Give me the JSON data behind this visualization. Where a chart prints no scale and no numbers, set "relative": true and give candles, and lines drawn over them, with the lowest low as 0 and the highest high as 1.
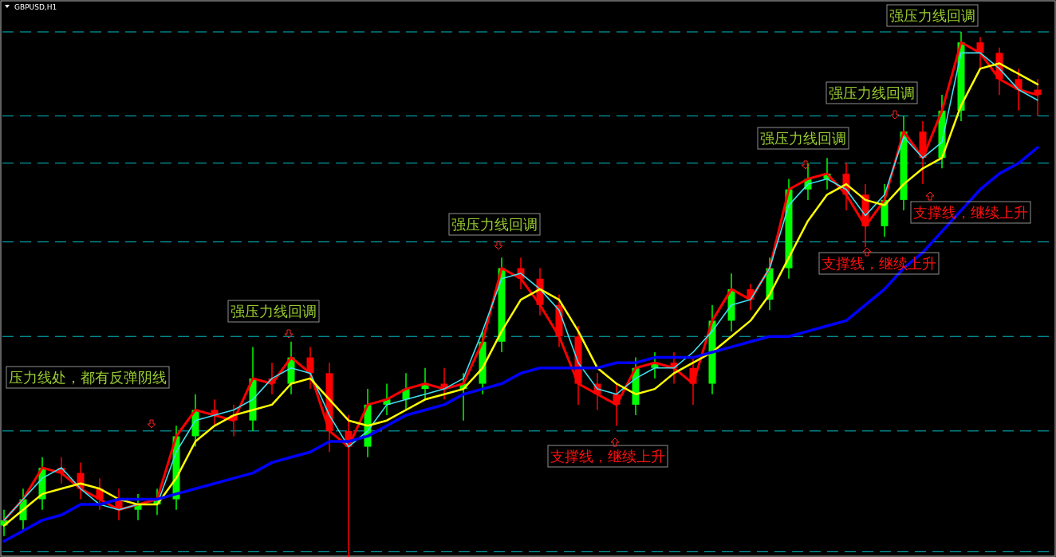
{
  "chart_data": {
    "type": "candlestick",
    "title": "GBPUSD,H1",
    "relative": true,
    "categories": [
      null,
      null,
      null,
      null,
      null,
      null,
      null,
      null,
      null,
      null,
      null,
      null,
      null,
      null,
      null,
      null,
      null,
      null,
      null,
      null,
      null,
      null,
      null,
      null,
      null,
      null,
      null,
      null,
      null,
      null,
      null,
      null,
      null,
      null,
      null,
      null,
      null,
      null,
      null,
      null,
      null,
      null,
      null,
      null,
      null,
      null,
      null,
      null,
      null,
      null,
      null,
      null,
      null,
      null,
      null
    ],
    "ohlc": [
      [
        0.06,
        0.09,
        0.04,
        0.07
      ],
      [
        0.07,
        0.13,
        0.05,
        0.11
      ],
      [
        0.11,
        0.19,
        0.09,
        0.17
      ],
      [
        0.17,
        0.19,
        0.14,
        0.16
      ],
      [
        0.16,
        0.18,
        0.11,
        0.13
      ],
      [
        0.13,
        0.15,
        0.09,
        0.11
      ],
      [
        0.11,
        0.13,
        0.07,
        0.09
      ],
      [
        0.09,
        0.12,
        0.07,
        0.1
      ],
      [
        0.1,
        0.13,
        0.08,
        0.11
      ],
      [
        0.11,
        0.25,
        0.09,
        0.23
      ],
      [
        0.23,
        0.31,
        0.21,
        0.28
      ],
      [
        0.28,
        0.3,
        0.25,
        0.27
      ],
      [
        0.27,
        0.29,
        0.23,
        0.26
      ],
      [
        0.26,
        0.4,
        0.24,
        0.34
      ],
      [
        0.34,
        0.37,
        0.31,
        0.33
      ],
      [
        0.33,
        0.41,
        0.31,
        0.38
      ],
      [
        0.38,
        0.4,
        0.32,
        0.35
      ],
      [
        0.35,
        0.37,
        0.2,
        0.24
      ],
      [
        0.24,
        0.27,
        0.0,
        0.21
      ],
      [
        0.21,
        0.32,
        0.19,
        0.29
      ],
      [
        0.29,
        0.33,
        0.27,
        0.3
      ],
      [
        0.3,
        0.35,
        0.28,
        0.32
      ],
      [
        0.32,
        0.36,
        0.3,
        0.33
      ],
      [
        0.33,
        0.36,
        0.3,
        0.32
      ],
      [
        0.32,
        0.35,
        0.26,
        0.33
      ],
      [
        0.33,
        0.43,
        0.31,
        0.41
      ],
      [
        0.41,
        0.57,
        0.39,
        0.55
      ],
      [
        0.55,
        0.57,
        0.51,
        0.53
      ],
      [
        0.53,
        0.55,
        0.46,
        0.48
      ],
      [
        0.48,
        0.5,
        0.4,
        0.42
      ],
      [
        0.42,
        0.44,
        0.29,
        0.33
      ],
      [
        0.33,
        0.35,
        0.28,
        0.31
      ],
      [
        0.31,
        0.33,
        0.25,
        0.29
      ],
      [
        0.29,
        0.38,
        0.27,
        0.36
      ],
      [
        0.36,
        0.39,
        0.34,
        0.37
      ],
      [
        0.37,
        0.39,
        0.33,
        0.36
      ],
      [
        0.36,
        0.38,
        0.29,
        0.33
      ],
      [
        0.33,
        0.48,
        0.31,
        0.45
      ],
      [
        0.45,
        0.54,
        0.43,
        0.51
      ],
      [
        0.51,
        0.52,
        0.47,
        0.49
      ],
      [
        0.49,
        0.57,
        0.47,
        0.55
      ],
      [
        0.55,
        0.72,
        0.53,
        0.7
      ],
      [
        0.7,
        0.75,
        0.68,
        0.72
      ],
      [
        0.72,
        0.76,
        0.7,
        0.73
      ],
      [
        0.73,
        0.75,
        0.66,
        0.69
      ],
      [
        0.69,
        0.71,
        0.59,
        0.63
      ],
      [
        0.63,
        0.71,
        0.61,
        0.68
      ],
      [
        0.68,
        0.84,
        0.66,
        0.81
      ],
      [
        0.81,
        0.83,
        0.71,
        0.76
      ],
      [
        0.76,
        0.88,
        0.74,
        0.85
      ],
      [
        0.85,
        1.0,
        0.83,
        0.98
      ],
      [
        0.98,
        0.99,
        0.93,
        0.96
      ],
      [
        0.96,
        0.97,
        0.88,
        0.91
      ],
      [
        0.91,
        0.93,
        0.85,
        0.89
      ],
      [
        0.89,
        0.91,
        0.84,
        0.88
      ]
    ],
    "series": [
      {
        "type": "line",
        "color": "#ff0000",
        "values": [
          0.07,
          0.11,
          0.17,
          0.16,
          0.13,
          0.11,
          0.09,
          0.1,
          0.11,
          0.23,
          0.28,
          0.27,
          0.26,
          0.34,
          0.33,
          0.38,
          0.35,
          0.24,
          0.21,
          0.29,
          0.3,
          0.32,
          0.33,
          0.32,
          0.33,
          0.41,
          0.55,
          0.53,
          0.48,
          0.42,
          0.33,
          0.31,
          0.29,
          0.36,
          0.37,
          0.36,
          0.33,
          0.45,
          0.51,
          0.49,
          0.55,
          0.7,
          0.72,
          0.73,
          0.69,
          0.63,
          0.68,
          0.81,
          0.76,
          0.85,
          0.98,
          0.96,
          0.91,
          0.89,
          0.88
        ]
      },
      {
        "type": "line",
        "color": "#40e0f0",
        "values": [
          0.07,
          0.11,
          0.15,
          0.17,
          0.13,
          0.1,
          0.09,
          0.1,
          0.1,
          0.2,
          0.26,
          0.27,
          0.28,
          0.3,
          0.34,
          0.36,
          0.35,
          0.27,
          0.21,
          0.24,
          0.29,
          0.3,
          0.31,
          0.32,
          0.34,
          0.43,
          0.53,
          0.54,
          0.51,
          0.47,
          0.37,
          0.32,
          0.31,
          0.34,
          0.36,
          0.36,
          0.39,
          0.43,
          0.48,
          0.49,
          0.55,
          0.67,
          0.71,
          0.72,
          0.7,
          0.65,
          0.69,
          0.8,
          0.76,
          0.79,
          0.96,
          0.96,
          0.93,
          0.89,
          0.87
        ]
      },
      {
        "type": "line",
        "color": "#ffff00",
        "values": [
          0.06,
          0.09,
          0.12,
          0.13,
          0.14,
          0.13,
          0.11,
          0.1,
          0.1,
          0.15,
          0.22,
          0.25,
          0.27,
          0.28,
          0.29,
          0.33,
          0.34,
          0.3,
          0.26,
          0.25,
          0.26,
          0.28,
          0.3,
          0.31,
          0.32,
          0.36,
          0.43,
          0.49,
          0.51,
          0.49,
          0.43,
          0.36,
          0.33,
          0.31,
          0.32,
          0.35,
          0.37,
          0.39,
          0.42,
          0.45,
          0.5,
          0.57,
          0.64,
          0.69,
          0.71,
          0.68,
          0.67,
          0.71,
          0.74,
          0.76,
          0.86,
          0.93,
          0.94,
          0.92,
          0.9
        ]
      },
      {
        "type": "line",
        "color": "#0000ff",
        "values": [
          0.03,
          0.05,
          0.07,
          0.08,
          0.1,
          0.1,
          0.11,
          0.11,
          0.11,
          0.12,
          0.13,
          0.14,
          0.15,
          0.16,
          0.18,
          0.19,
          0.2,
          0.22,
          0.22,
          0.23,
          0.25,
          0.27,
          0.28,
          0.29,
          0.31,
          0.32,
          0.33,
          0.35,
          0.36,
          0.36,
          0.36,
          0.36,
          0.37,
          0.37,
          0.38,
          0.38,
          0.38,
          0.39,
          0.4,
          0.41,
          0.42,
          0.42,
          0.43,
          0.44,
          0.45,
          0.48,
          0.51,
          0.55,
          0.58,
          0.62,
          0.66,
          0.7,
          0.73,
          0.75,
          0.78
        ]
      }
    ],
    "ref_lines": [
      {
        "axis": "y",
        "value": 1.0,
        "color": "#00c0c8",
        "line_style": "dashed"
      },
      {
        "axis": "y",
        "value": 0.84,
        "color": "#00c0c8",
        "line_style": "dashed"
      },
      {
        "axis": "y",
        "value": 0.75,
        "color": "#00c0c8",
        "line_style": "dashed"
      },
      {
        "axis": "y",
        "value": 0.6,
        "color": "#00c0c8",
        "line_style": "dashed"
      },
      {
        "axis": "y",
        "value": 0.42,
        "color": "#00c0c8",
        "line_style": "dashed"
      },
      {
        "axis": "y",
        "value": 0.24,
        "color": "#00c0c8",
        "line_style": "dashed"
      },
      {
        "axis": "y",
        "value": 0.01,
        "color": "#00c0c8",
        "line_style": "dashed"
      }
    ],
    "annotations": [
      "压力线处，都有反弹阴线",
      "强压力线回调",
      "强压力线回调",
      "强压力线回调",
      "强压力线回调",
      "强压力线回调",
      "支撑线，继续上升",
      "支撑线，继续上升",
      "支撑线，继续上升"
    ],
    "marker": "none"
  }
}
